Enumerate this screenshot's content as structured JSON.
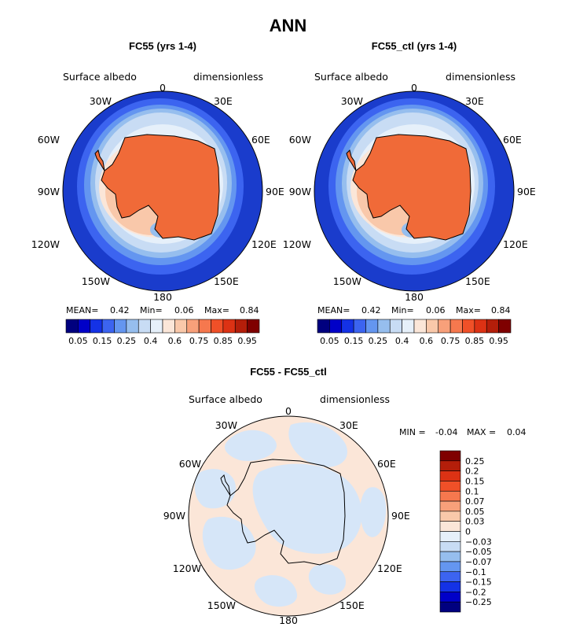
{
  "figure_title": "ANN",
  "chart_data": [
    {
      "type": "heatmap",
      "projection": "south-polar-stereographic",
      "title": "FC55 (yrs 1-4)",
      "variable": "Surface albedo",
      "units": "dimensionless",
      "lon_labels": [
        "0",
        "30E",
        "60E",
        "90E",
        "120E",
        "150E",
        "180",
        "150W",
        "120W",
        "90W",
        "60W",
        "30W"
      ],
      "stats": {
        "mean_label": "MEAN=",
        "mean": "0.42",
        "min_label": "Min=",
        "min": "0.06",
        "max_label": "Max=",
        "max": "0.84"
      },
      "colorbar": {
        "orientation": "horizontal",
        "colors": [
          "#00007f",
          "#0000c8",
          "#1432e6",
          "#3c64f0",
          "#6496f0",
          "#96beee",
          "#c8dcf4",
          "#e6f0fa",
          "#fbe6d8",
          "#f9c8aa",
          "#f8a07a",
          "#f6784e",
          "#f05028",
          "#dc3214",
          "#b41e0a",
          "#7f0000"
        ],
        "tick_labels": [
          "0.05",
          "0.15",
          "0.25",
          "0.4",
          "0.6",
          "0.75",
          "0.85",
          "0.95"
        ]
      }
    },
    {
      "type": "heatmap",
      "projection": "south-polar-stereographic",
      "title": "FC55_ctl (yrs 1-4)",
      "variable": "Surface albedo",
      "units": "dimensionless",
      "lon_labels": [
        "0",
        "30E",
        "60E",
        "90E",
        "120E",
        "150E",
        "180",
        "150W",
        "120W",
        "90W",
        "60W",
        "30W"
      ],
      "stats": {
        "mean_label": "MEAN=",
        "mean": "0.42",
        "min_label": "Min=",
        "min": "0.06",
        "max_label": "Max=",
        "max": "0.84"
      },
      "colorbar": {
        "orientation": "horizontal",
        "colors": [
          "#00007f",
          "#0000c8",
          "#1432e6",
          "#3c64f0",
          "#6496f0",
          "#96beee",
          "#c8dcf4",
          "#e6f0fa",
          "#fbe6d8",
          "#f9c8aa",
          "#f8a07a",
          "#f6784e",
          "#f05028",
          "#dc3214",
          "#b41e0a",
          "#7f0000"
        ],
        "tick_labels": [
          "0.05",
          "0.15",
          "0.25",
          "0.4",
          "0.6",
          "0.75",
          "0.85",
          "0.95"
        ]
      }
    },
    {
      "type": "heatmap",
      "projection": "south-polar-stereographic",
      "title": "FC55 - FC55_ctl",
      "variable": "Surface albedo",
      "units": "dimensionless",
      "lon_labels": [
        "0",
        "30E",
        "60E",
        "90E",
        "120E",
        "150E",
        "180",
        "150W",
        "120W",
        "90W",
        "60W",
        "30W"
      ],
      "stats": {
        "min_label": "MIN =",
        "min": "-0.04",
        "max_label": "MAX =",
        "max": "0.04"
      },
      "colorbar": {
        "orientation": "vertical",
        "colors": [
          "#7f0000",
          "#b41e0a",
          "#dc3214",
          "#f05028",
          "#f6784e",
          "#f8a07a",
          "#f9c8aa",
          "#fbe6d8",
          "#e6f0fa",
          "#c8dcf4",
          "#96beee",
          "#6496f0",
          "#3c64f0",
          "#1432e6",
          "#0000c8",
          "#00007f"
        ],
        "tick_labels": [
          "0.25",
          "0.2",
          "0.15",
          "0.1",
          "0.07",
          "0.05",
          "0.03",
          "0",
          "−0.03",
          "−0.05",
          "−0.07",
          "−0.1",
          "−0.15",
          "−0.2",
          "−0.25"
        ]
      }
    }
  ]
}
